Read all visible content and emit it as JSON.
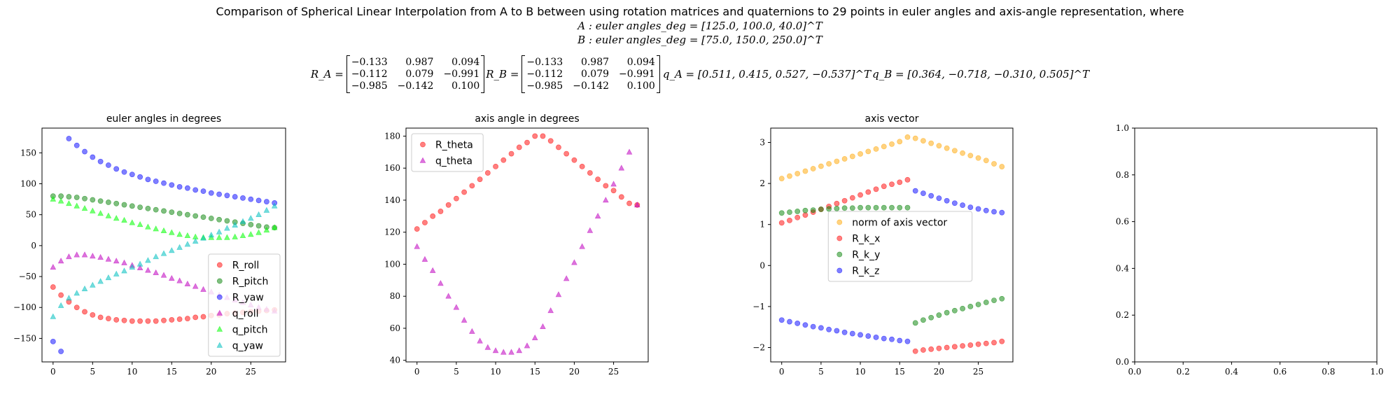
{
  "header": {
    "title": "Comparison of Spherical Linear Interpolation from A to B between using rotation matrices and quaternions to 29 points in euler angles and axis-angle representation, where",
    "line_a": "A : euler angles_deg = [125.0, 100.0, 40.0]^T",
    "line_b": "B : euler angles_deg = [75.0, 150.0, 250.0]^T",
    "ra_label": "R_A =",
    "rb_label": "R_B =",
    "ra_matrix": [
      "−0.133",
      "0.987",
      "0.094",
      "−0.112",
      "0.079",
      "−0.991",
      "−0.985",
      "−0.142",
      "0.100"
    ],
    "rb_matrix": [
      "−0.133",
      "0.987",
      "0.094",
      "−0.112",
      "0.079",
      "−0.991",
      "−0.985",
      "−0.142",
      "0.100"
    ],
    "qa_text": "q_A = [0.511, 0.415, 0.527, −0.537]^T",
    "qb_text": "q_B = [0.364, −0.718, −0.310, 0.505]^T"
  },
  "chart_data": [
    {
      "type": "scatter",
      "title": "euler angles in degrees",
      "xlabel": "",
      "ylabel": "",
      "xlim": [
        -1.4,
        29.4
      ],
      "ylim": [
        -188,
        190
      ],
      "xticks": [
        0,
        5,
        10,
        15,
        20,
        25
      ],
      "yticks": [
        -150,
        -100,
        -50,
        0,
        50,
        100,
        150
      ],
      "legend_position": "lower-right",
      "series": [
        {
          "name": "R_roll",
          "marker": "circle",
          "color": "#ff0000",
          "x": [
            0,
            1,
            2,
            3,
            4,
            5,
            6,
            7,
            8,
            9,
            10,
            11,
            12,
            13,
            14,
            15,
            16,
            17,
            18,
            19,
            20,
            21,
            22,
            23,
            24,
            25,
            26,
            27,
            28
          ],
          "y": [
            -67,
            -80,
            -91,
            -100,
            -107,
            -112,
            -116,
            -118,
            -120,
            -121,
            -122,
            -122,
            -122,
            -122,
            -121,
            -120,
            -119,
            -118,
            -116,
            -115,
            -113,
            -112,
            -110,
            -109,
            -108,
            -107,
            -106,
            -105,
            -104
          ]
        },
        {
          "name": "R_pitch",
          "marker": "circle",
          "color": "#008000",
          "x": [
            0,
            1,
            2,
            3,
            4,
            5,
            6,
            7,
            8,
            9,
            10,
            11,
            12,
            13,
            14,
            15,
            16,
            17,
            18,
            19,
            20,
            21,
            22,
            23,
            24,
            25,
            26,
            27,
            28
          ],
          "y": [
            80,
            80,
            79,
            78,
            76,
            74,
            72,
            70,
            68,
            66,
            64,
            62,
            60,
            58,
            56,
            54,
            52,
            50,
            48,
            46,
            44,
            42,
            40,
            38,
            36,
            34,
            32,
            30,
            29
          ]
        },
        {
          "name": "R_yaw",
          "marker": "circle",
          "color": "#0000ff",
          "x": [
            0,
            1,
            2,
            3,
            4,
            5,
            6,
            7,
            8,
            9,
            10,
            11,
            12,
            13,
            14,
            15,
            16,
            17,
            18,
            19,
            20,
            21,
            22,
            23,
            24,
            25,
            26,
            27,
            28
          ],
          "y": [
            -155,
            -171,
            173,
            162,
            152,
            143,
            136,
            130,
            124,
            119,
            115,
            111,
            107,
            104,
            101,
            98,
            95,
            93,
            90,
            88,
            85,
            83,
            81,
            79,
            77,
            75,
            73,
            71,
            69
          ]
        },
        {
          "name": "q_roll",
          "marker": "triangle",
          "color": "#bf00bf",
          "x": [
            0,
            1,
            2,
            3,
            4,
            5,
            6,
            7,
            8,
            9,
            10,
            11,
            12,
            13,
            14,
            15,
            16,
            17,
            18,
            19,
            20,
            21,
            22,
            23,
            24,
            25,
            26,
            27,
            28
          ],
          "y": [
            -35,
            -25,
            -18,
            -15,
            -15,
            -17,
            -19,
            -22,
            -25,
            -28,
            -32,
            -36,
            -40,
            -44,
            -48,
            -53,
            -57,
            -62,
            -66,
            -71,
            -75,
            -80,
            -84,
            -88,
            -92,
            -96,
            -100,
            -103,
            -106
          ]
        },
        {
          "name": "q_pitch",
          "marker": "triangle",
          "color": "#00ff00",
          "x": [
            0,
            1,
            2,
            3,
            4,
            5,
            6,
            7,
            8,
            9,
            10,
            11,
            12,
            13,
            14,
            15,
            16,
            17,
            18,
            19,
            20,
            21,
            22,
            23,
            24,
            25,
            26,
            27,
            28
          ],
          "y": [
            75,
            72,
            68,
            64,
            60,
            56,
            52,
            48,
            44,
            41,
            37,
            34,
            30,
            27,
            24,
            21,
            18,
            16,
            14,
            13,
            13,
            13,
            13,
            14,
            16,
            18,
            21,
            25,
            29
          ]
        },
        {
          "name": "q_yaw",
          "marker": "triangle",
          "color": "#00bfbf",
          "x": [
            0,
            1,
            2,
            3,
            4,
            5,
            6,
            7,
            8,
            9,
            10,
            11,
            12,
            13,
            14,
            15,
            16,
            17,
            18,
            19,
            20,
            21,
            22,
            23,
            24,
            25,
            26,
            27,
            28
          ],
          "y": [
            -115,
            -97,
            -85,
            -77,
            -70,
            -64,
            -58,
            -52,
            -46,
            -41,
            -35,
            -30,
            -24,
            -18,
            -13,
            -8,
            -3,
            2,
            7,
            12,
            17,
            22,
            28,
            33,
            39,
            44,
            50,
            57,
            64
          ]
        }
      ]
    },
    {
      "type": "scatter",
      "title": "axis angle in degrees",
      "xlabel": "",
      "ylabel": "",
      "xlim": [
        -1.4,
        29.4
      ],
      "ylim": [
        39,
        185
      ],
      "xticks": [
        0,
        5,
        10,
        15,
        20,
        25
      ],
      "yticks": [
        40,
        60,
        80,
        100,
        120,
        140,
        160,
        180
      ],
      "legend_position": "upper-left",
      "series": [
        {
          "name": "R_theta",
          "marker": "circle",
          "color": "#ff0000",
          "x": [
            0,
            1,
            2,
            3,
            4,
            5,
            6,
            7,
            8,
            9,
            10,
            11,
            12,
            13,
            14,
            15,
            16,
            17,
            18,
            19,
            20,
            21,
            22,
            23,
            24,
            25,
            26,
            27,
            28
          ],
          "y": [
            122,
            126,
            130,
            133,
            137,
            141,
            145,
            149,
            153,
            157,
            161,
            165,
            169,
            173,
            176,
            180,
            180,
            177,
            173,
            169,
            165,
            161,
            157,
            153,
            149,
            146,
            142,
            138,
            137
          ]
        },
        {
          "name": "q_theta",
          "marker": "triangle",
          "color": "#bf00bf",
          "x": [
            0,
            1,
            2,
            3,
            4,
            5,
            6,
            7,
            8,
            9,
            10,
            11,
            12,
            13,
            14,
            15,
            16,
            17,
            18,
            19,
            20,
            21,
            22,
            23,
            24,
            25,
            26,
            27,
            28
          ],
          "y": [
            111,
            103,
            96,
            88,
            80,
            73,
            65,
            58,
            52,
            48,
            46,
            45,
            45,
            46,
            49,
            54,
            61,
            71,
            81,
            91,
            101,
            111,
            121,
            130,
            140,
            150,
            160,
            170,
            137
          ]
        }
      ]
    },
    {
      "type": "scatter",
      "title": "axis vector",
      "xlabel": "",
      "ylabel": "",
      "xlim": [
        -1.4,
        29.4
      ],
      "ylim": [
        -2.35,
        3.35
      ],
      "xticks": [
        0,
        5,
        10,
        15,
        20,
        25
      ],
      "yticks": [
        -2,
        -1,
        0,
        1,
        2,
        3
      ],
      "legend_position": "center",
      "series": [
        {
          "name": "norm of axis vector",
          "marker": "circle",
          "color": "#ffa500",
          "x": [
            0,
            1,
            2,
            3,
            4,
            5,
            6,
            7,
            8,
            9,
            10,
            11,
            12,
            13,
            14,
            15,
            16,
            17,
            18,
            19,
            20,
            21,
            22,
            23,
            24,
            25,
            26,
            27,
            28
          ],
          "y": [
            2.12,
            2.18,
            2.24,
            2.3,
            2.36,
            2.42,
            2.48,
            2.54,
            2.6,
            2.66,
            2.72,
            2.78,
            2.84,
            2.9,
            2.96,
            3.02,
            3.13,
            3.1,
            3.04,
            2.98,
            2.92,
            2.86,
            2.8,
            2.74,
            2.68,
            2.62,
            2.56,
            2.48,
            2.41
          ]
        },
        {
          "name": "R_k_x",
          "marker": "circle",
          "color": "#ff0000",
          "x": [
            0,
            1,
            2,
            3,
            4,
            5,
            6,
            7,
            8,
            9,
            10,
            11,
            12,
            13,
            14,
            15,
            16,
            17,
            18,
            19,
            20,
            21,
            22,
            23,
            24,
            25,
            26,
            27,
            28
          ],
          "y": [
            1.04,
            1.1,
            1.17,
            1.23,
            1.3,
            1.37,
            1.44,
            1.51,
            1.58,
            1.65,
            1.72,
            1.79,
            1.86,
            1.93,
            1.98,
            2.03,
            2.09,
            -2.09,
            -2.06,
            -2.04,
            -2.02,
            -2.0,
            -1.98,
            -1.96,
            -1.94,
            -1.92,
            -1.9,
            -1.88,
            -1.85
          ]
        },
        {
          "name": "R_k_y",
          "marker": "circle",
          "color": "#008000",
          "x": [
            0,
            1,
            2,
            3,
            4,
            5,
            6,
            7,
            8,
            9,
            10,
            11,
            12,
            13,
            14,
            15,
            16,
            17,
            18,
            19,
            20,
            21,
            22,
            23,
            24,
            25,
            26,
            27,
            28
          ],
          "y": [
            1.28,
            1.3,
            1.32,
            1.34,
            1.35,
            1.37,
            1.38,
            1.39,
            1.4,
            1.4,
            1.41,
            1.41,
            1.41,
            1.41,
            1.41,
            1.41,
            1.41,
            -1.4,
            -1.33,
            -1.27,
            -1.21,
            -1.15,
            -1.1,
            -1.05,
            -1.0,
            -0.95,
            -0.9,
            -0.85,
            -0.81
          ]
        },
        {
          "name": "R_k_z",
          "marker": "circle",
          "color": "#0000ff",
          "x": [
            0,
            1,
            2,
            3,
            4,
            5,
            6,
            7,
            8,
            9,
            10,
            11,
            12,
            13,
            14,
            15,
            16,
            17,
            18,
            19,
            20,
            21,
            22,
            23,
            24,
            25,
            26,
            27,
            28
          ],
          "y": [
            -1.33,
            -1.37,
            -1.41,
            -1.45,
            -1.49,
            -1.52,
            -1.56,
            -1.59,
            -1.63,
            -1.66,
            -1.69,
            -1.72,
            -1.75,
            -1.78,
            -1.8,
            -1.83,
            -1.85,
            1.82,
            1.76,
            1.7,
            1.64,
            1.58,
            1.52,
            1.47,
            1.42,
            1.38,
            1.34,
            1.31,
            1.29
          ]
        }
      ]
    },
    {
      "type": "scatter",
      "title": "",
      "xlabel": "",
      "ylabel": "",
      "xlim": [
        0,
        1
      ],
      "ylim": [
        0,
        1
      ],
      "xticks": [
        0.0,
        0.2,
        0.4,
        0.6,
        0.8,
        1.0
      ],
      "yticks": [
        0.0,
        0.2,
        0.4,
        0.6,
        0.8,
        1.0
      ],
      "series": []
    }
  ]
}
